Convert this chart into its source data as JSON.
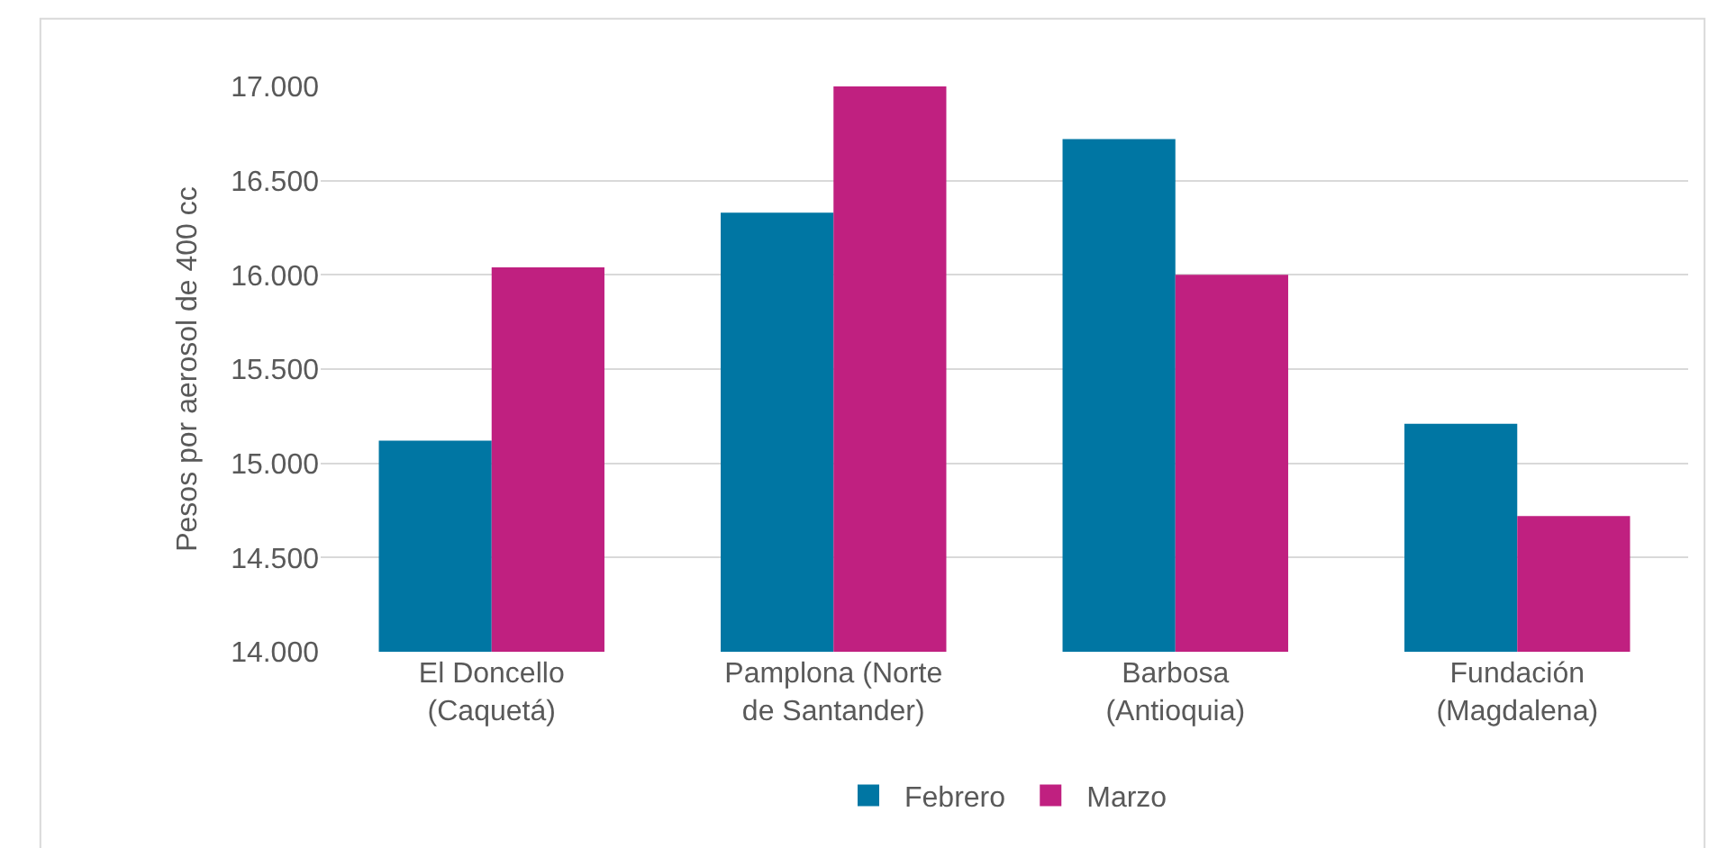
{
  "chart_data": {
    "type": "bar",
    "ylabel": "Pesos por aerosol de 400 cc",
    "categories": [
      "El Doncello (Caquetá)",
      "Pamplona (Norte de Santander)",
      "Barbosa (Antioquia)",
      "Fundación (Magdalena)"
    ],
    "series": [
      {
        "name": "Febrero",
        "color": "#0076a3",
        "values": [
          15120,
          16330,
          16720,
          15210
        ]
      },
      {
        "name": "Marzo",
        "color": "#c02080",
        "values": [
          16040,
          17000,
          16000,
          14720
        ]
      }
    ],
    "ylim": [
      14000,
      17000
    ],
    "yticks": [
      {
        "value": 14000,
        "label": "14.000"
      },
      {
        "value": 14500,
        "label": "14.500"
      },
      {
        "value": 15000,
        "label": "15.000"
      },
      {
        "value": 15500,
        "label": "15.500"
      },
      {
        "value": 16000,
        "label": "16.000"
      },
      {
        "value": 16500,
        "label": "16.500"
      },
      {
        "value": 17000,
        "label": "17.000"
      }
    ],
    "grid": "y",
    "legend": "bottom"
  }
}
